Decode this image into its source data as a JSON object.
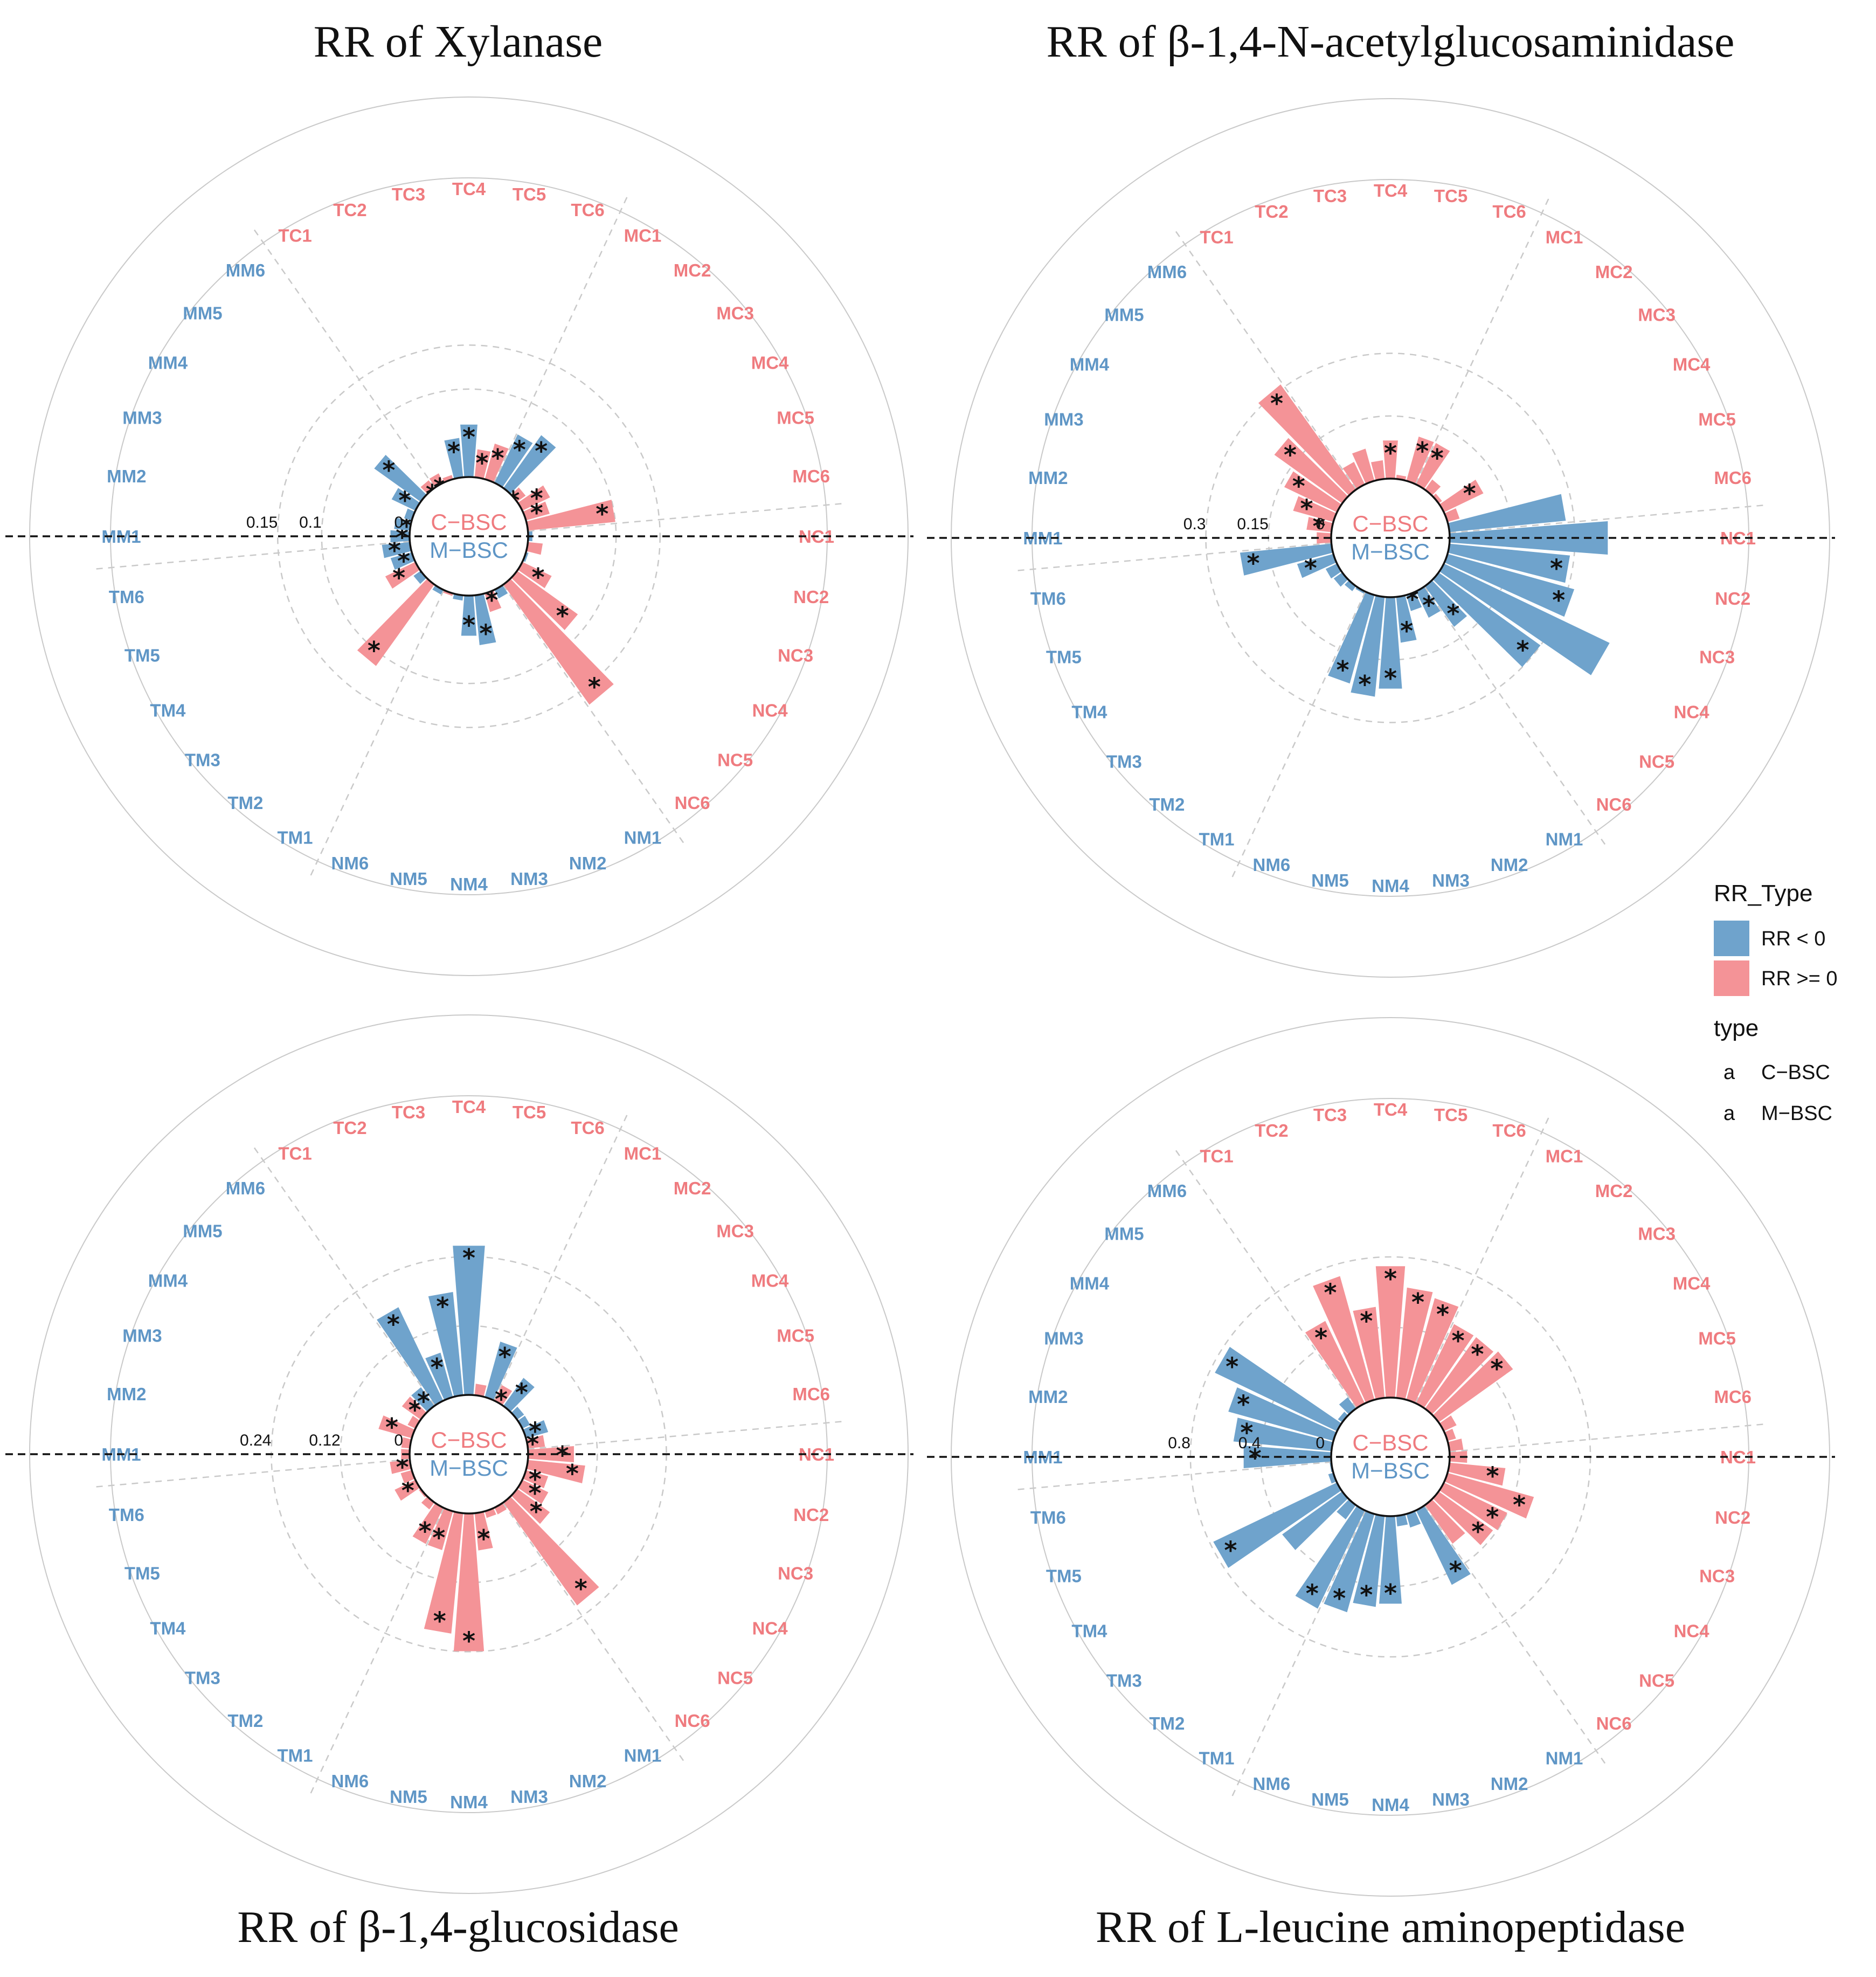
{
  "colors": {
    "rr_neg": "#6fa3cc",
    "rr_pos": "#f49397",
    "c_bsc_text": "#ef7b7f",
    "m_bsc_text": "#5f96c6",
    "grid": "#c9c9c9",
    "axis": "#111111"
  },
  "center_labels": {
    "top": "C−BSC",
    "bottom": "M−BSC"
  },
  "legend": {
    "fill_title": "RR_Type",
    "fill_items": [
      {
        "label": "RR < 0",
        "color_key": "rr_neg"
      },
      {
        "label": "RR >= 0",
        "color_key": "rr_pos"
      }
    ],
    "type_title": "type",
    "type_items": [
      {
        "glyph": "a",
        "label": "C−BSC",
        "color_key": "c_bsc_text"
      },
      {
        "glyph": "a",
        "label": "M−BSC",
        "color_key": "m_bsc_text"
      }
    ]
  },
  "chart_data": [
    {
      "type": "bar",
      "coord": "polar",
      "title": "RR of Xylanase",
      "axis_ticks": [
        "0.15",
        "0.1",
        "0"
      ],
      "tick_values": [
        0.15,
        0.1,
        0
      ],
      "rmax": 0.19,
      "categories": [
        "TC1",
        "TC2",
        "TC3",
        "TC4",
        "TC5",
        "TC6",
        "MC1",
        "MC2",
        "MC3",
        "MC4",
        "MC5",
        "MC6",
        "NC1",
        "NC2",
        "NC3",
        "NC4",
        "NC5",
        "NC6",
        "NM1",
        "NM2",
        "NM3",
        "NM4",
        "NM5",
        "NM6",
        "TM1",
        "TM2",
        "TM3",
        "TM4",
        "TM5",
        "TM6",
        "MM1",
        "MM2",
        "MM3",
        "MM4",
        "MM5",
        "MM6"
      ],
      "group": [
        "C",
        "C",
        "C",
        "C",
        "C",
        "C",
        "C",
        "C",
        "C",
        "C",
        "C",
        "C",
        "C",
        "C",
        "C",
        "C",
        "C",
        "C",
        "M",
        "M",
        "M",
        "M",
        "M",
        "M",
        "M",
        "M",
        "M",
        "M",
        "M",
        "M",
        "M",
        "M",
        "M",
        "M",
        "M",
        "M"
      ],
      "values": [
        0.012,
        0.005,
        -0.045,
        -0.06,
        0.032,
        0.042,
        -0.061,
        -0.074,
        0.012,
        0.035,
        0.028,
        0.1,
        -0.005,
        0.017,
        -0.003,
        0.037,
        0.085,
        0.168,
        -0.011,
        0.022,
        -0.057,
        -0.046,
        -0.006,
        0.003,
        -0.006,
        0.114,
        -0.01,
        0.038,
        -0.025,
        -0.032,
        -0.022,
        -0.018,
        -0.009,
        -0.03,
        -0.065,
        0.011
      ],
      "significant": [
        1,
        0,
        1,
        1,
        1,
        1,
        1,
        1,
        1,
        1,
        1,
        1,
        0,
        0,
        1,
        1,
        1,
        1,
        1,
        1,
        1,
        1,
        0,
        0,
        0,
        1,
        1,
        1,
        1,
        1,
        1,
        1,
        0,
        1,
        1,
        1
      ]
    },
    {
      "type": "bar",
      "coord": "polar",
      "title": "RR of β-1,4-N-acetylglucosaminidase",
      "axis_ticks": [
        "0.3",
        "0.15",
        "0"
      ],
      "tick_values": [
        0.3,
        0.15,
        0
      ],
      "rmax": 0.4,
      "categories": [
        "TC1",
        "TC2",
        "TC3",
        "TC4",
        "TC5",
        "TC6",
        "MC1",
        "MC2",
        "MC3",
        "MC4",
        "MC5",
        "MC6",
        "NC1",
        "NC2",
        "NC3",
        "NC4",
        "NC5",
        "NC6",
        "NM1",
        "NM2",
        "NM3",
        "NM4",
        "NM5",
        "NM6",
        "TM1",
        "TM2",
        "TM3",
        "TM4",
        "TM5",
        "TM6",
        "MM1",
        "MM2",
        "MM3",
        "MM4",
        "MM5",
        "MM6"
      ],
      "group": [
        "C",
        "C",
        "C",
        "C",
        "C",
        "C",
        "C",
        "C",
        "C",
        "C",
        "C",
        "C",
        "C",
        "C",
        "C",
        "C",
        "C",
        "C",
        "M",
        "M",
        "M",
        "M",
        "M",
        "M",
        "M",
        "M",
        "M",
        "M",
        "M",
        "M",
        "M",
        "M",
        "M",
        "M",
        "M",
        "M"
      ],
      "values": [
        0.06,
        0.08,
        0.045,
        0.092,
        0.01,
        0.11,
        0.11,
        0.03,
        0.01,
        0.105,
        0.03,
        -0.28,
        -0.38,
        -0.29,
        -0.315,
        -0.44,
        -0.3,
        -0.12,
        -0.07,
        -0.04,
        -0.11,
        -0.22,
        -0.24,
        -0.22,
        -0.006,
        -0.015,
        -0.025,
        -0.03,
        -0.09,
        -0.22,
        0.035,
        0.06,
        0.1,
        0.14,
        0.2,
        0.31
      ],
      "significant": [
        0,
        0,
        0,
        1,
        0,
        1,
        1,
        0,
        0,
        1,
        0,
        0,
        0,
        1,
        1,
        0,
        1,
        1,
        1,
        1,
        1,
        1,
        1,
        1,
        0,
        0,
        0,
        0,
        1,
        1,
        0,
        1,
        1,
        1,
        1,
        1
      ]
    },
    {
      "type": "bar",
      "coord": "polar",
      "title": "RR of β-1,4-glucosidase",
      "axis_ticks": [
        "0.24",
        "0.12",
        "0"
      ],
      "tick_values": [
        0.24,
        0.12,
        0
      ],
      "rmax": 0.29,
      "categories": [
        "TC1",
        "TC2",
        "TC3",
        "TC4",
        "TC5",
        "TC6",
        "MC1",
        "MC2",
        "MC3",
        "MC4",
        "MC5",
        "MC6",
        "NC1",
        "NC2",
        "NC3",
        "NC4",
        "NC5",
        "NC6",
        "NM1",
        "NM2",
        "NM3",
        "NM4",
        "NM5",
        "NM6",
        "TM1",
        "TM2",
        "TM3",
        "TM4",
        "TM5",
        "TM6",
        "MM1",
        "MM2",
        "MM3",
        "MM4",
        "MM5",
        "MM6"
      ],
      "group": [
        "C",
        "C",
        "C",
        "C",
        "C",
        "C",
        "C",
        "C",
        "C",
        "C",
        "C",
        "C",
        "C",
        "C",
        "C",
        "C",
        "C",
        "C",
        "M",
        "M",
        "M",
        "M",
        "M",
        "M",
        "M",
        "M",
        "M",
        "M",
        "M",
        "M",
        "M",
        "M",
        "M",
        "M",
        "M",
        "M"
      ],
      "values": [
        -0.18,
        -0.08,
        -0.18,
        -0.26,
        0.02,
        -0.1,
        0.03,
        -0.06,
        -0.015,
        -0.015,
        -0.04,
        0.03,
        0.08,
        0.1,
        0.04,
        0.05,
        0.07,
        0.22,
        0.013,
        0.012,
        0.065,
        0.24,
        0.21,
        0.07,
        0.07,
        0.015,
        0.004,
        0.04,
        0.02,
        0.035,
        0.015,
        0.015,
        0.06,
        0.015,
        0.04,
        -0.04
      ],
      "significant": [
        1,
        1,
        1,
        1,
        0,
        1,
        1,
        1,
        0,
        0,
        1,
        1,
        1,
        1,
        1,
        1,
        1,
        1,
        0,
        0,
        1,
        1,
        1,
        1,
        1,
        0,
        0,
        1,
        0,
        1,
        0,
        0,
        1,
        0,
        1,
        1
      ]
    },
    {
      "type": "bar",
      "coord": "polar",
      "title": "RR of L-leucine aminopeptidase",
      "axis_ticks": [
        "0.8",
        "0.4",
        "0"
      ],
      "tick_values": [
        0.8,
        0.4,
        0
      ],
      "rmax": 0.95,
      "categories": [
        "TC1",
        "TC2",
        "TC3",
        "TC4",
        "TC5",
        "TC6",
        "MC1",
        "MC2",
        "MC3",
        "MC4",
        "MC5",
        "MC6",
        "NC1",
        "NC2",
        "NC3",
        "NC4",
        "NC5",
        "NC6",
        "NM1",
        "NM2",
        "NM3",
        "NM4",
        "NM5",
        "NM6",
        "TM1",
        "TM2",
        "TM3",
        "TM4",
        "TM5",
        "TM6",
        "MM1",
        "MM2",
        "MM3",
        "MM4",
        "MM5",
        "MM6"
      ],
      "group": [
        "C",
        "C",
        "C",
        "C",
        "C",
        "C",
        "C",
        "C",
        "C",
        "C",
        "C",
        "C",
        "C",
        "C",
        "C",
        "C",
        "C",
        "C",
        "M",
        "M",
        "M",
        "M",
        "M",
        "M",
        "M",
        "M",
        "M",
        "M",
        "M",
        "M",
        "M",
        "M",
        "M",
        "M",
        "M",
        "M"
      ],
      "values": [
        0.52,
        0.73,
        0.52,
        0.75,
        0.63,
        0.6,
        0.5,
        0.5,
        0.52,
        0.08,
        0.05,
        0.08,
        0.1,
        0.32,
        0.51,
        0.4,
        0.38,
        0.27,
        -0.47,
        -0.08,
        -0.06,
        -0.5,
        -0.52,
        -0.58,
        -0.62,
        -0.1,
        -0.42,
        -0.78,
        -0.03,
        -0.01,
        -0.5,
        -0.56,
        -0.62,
        -0.77,
        -0.03,
        -0.08
      ],
      "significant": [
        1,
        1,
        1,
        1,
        1,
        1,
        1,
        1,
        1,
        0,
        0,
        0,
        0,
        1,
        1,
        1,
        1,
        0,
        1,
        0,
        0,
        1,
        1,
        1,
        1,
        0,
        0,
        1,
        0,
        0,
        1,
        1,
        1,
        1,
        0,
        0
      ]
    }
  ]
}
